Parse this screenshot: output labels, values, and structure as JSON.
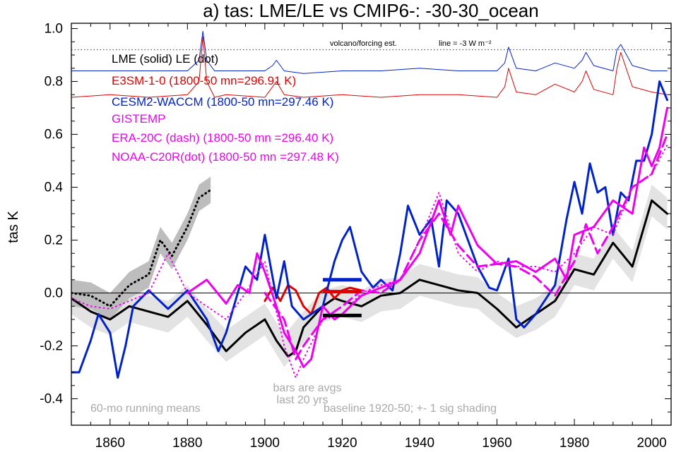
{
  "title": "a) tas: LME/LE vs CMIP6-: -30-30_ocean",
  "ylabel": "tas K",
  "legend": [
    {
      "label": "LME (solid)   LE (dot)",
      "color": "#000000"
    },
    {
      "label": "E3SM-1-0 (1800-50 mn=296.91 K)",
      "color": "#e00000"
    },
    {
      "label": "CESM2-WACCM (1800-50 mn=297.46 K)",
      "color": "#0022cc"
    },
    {
      "label": "GISTEMP",
      "color": "#ee00ee"
    },
    {
      "label": "ERA-20C (dash) (1800-50 mn =296.40 K)",
      "color": "#ee00ee"
    },
    {
      "label": "NOAA-C20R(dot) (1800-50 mn =297.48 K)",
      "color": "#ee00ee"
    }
  ],
  "annotations": {
    "forcing_label": "volcano/forcing est.",
    "forcing_scale": "line = -3 W m⁻²",
    "running_means": "60-mo running means",
    "bars_line1": "bars are avgs",
    "bars_line2": "last 20 yrs",
    "baseline": "baseline 1920-50; +- 1 sig shading"
  },
  "chart_data": {
    "type": "line",
    "xlim": [
      1850,
      2005
    ],
    "ylim": [
      -0.5,
      1.02
    ],
    "xticks": [
      1860,
      1880,
      1900,
      1920,
      1940,
      1960,
      1980,
      2000
    ],
    "yticks": [
      -0.4,
      -0.2,
      0.0,
      0.2,
      0.4,
      0.6,
      0.8,
      1.0
    ],
    "ytick_labels": [
      "-0.4",
      "-0.2",
      "0.0",
      "0.2",
      "0.4",
      "0.6",
      "0.8",
      "1.0"
    ],
    "zero_line": true,
    "forcing_reference_y": 0.92,
    "series": [
      {
        "name": "LME",
        "color": "#000000",
        "width": 3,
        "style": "solid",
        "x": [
          1850,
          1855,
          1860,
          1865,
          1870,
          1875,
          1880,
          1885,
          1890,
          1895,
          1900,
          1903,
          1906,
          1908,
          1910,
          1915,
          1918,
          1920,
          1925,
          1930,
          1935,
          1940,
          1945,
          1950,
          1955,
          1960,
          1965,
          1970,
          1975,
          1980,
          1985,
          1990,
          1995,
          2000,
          2004
        ],
        "y": [
          -0.02,
          -0.07,
          -0.1,
          -0.05,
          -0.07,
          -0.09,
          -0.03,
          -0.12,
          -0.22,
          -0.15,
          -0.1,
          -0.18,
          -0.24,
          -0.22,
          -0.13,
          -0.05,
          -0.02,
          -0.03,
          -0.05,
          -0.01,
          0.0,
          0.05,
          0.03,
          0.01,
          0.0,
          -0.06,
          -0.13,
          -0.08,
          -0.03,
          0.09,
          0.07,
          0.19,
          0.1,
          0.35,
          0.3
        ]
      },
      {
        "name": "E3SM-1-0",
        "color": "#e00000",
        "width": 3,
        "style": "solid",
        "x": [
          1900,
          1902,
          1904,
          1906,
          1908,
          1910,
          1912,
          1914,
          1916,
          1918,
          1920,
          1922,
          1925
        ],
        "y": [
          -0.03,
          0.02,
          -0.03,
          0.03,
          0.01,
          -0.05,
          -0.08,
          0.0,
          0.02,
          -0.02,
          0.01,
          0.02,
          0.01
        ]
      },
      {
        "name": "E3SM-1-0 forcing",
        "color": "#e00000",
        "width": 1,
        "style": "solid",
        "x": [
          1850,
          1860,
          1870,
          1880,
          1883,
          1884,
          1885,
          1887,
          1890,
          1900,
          1902,
          1903,
          1905,
          1910,
          1920,
          1930,
          1940,
          1950,
          1960,
          1962,
          1963,
          1965,
          1970,
          1975,
          1980,
          1982,
          1983,
          1985,
          1990,
          1991,
          1992,
          1995,
          2000,
          2004
        ],
        "y": [
          0.74,
          0.75,
          0.74,
          0.75,
          0.8,
          0.97,
          0.8,
          0.74,
          0.75,
          0.74,
          0.78,
          0.8,
          0.75,
          0.74,
          0.75,
          0.74,
          0.75,
          0.75,
          0.74,
          0.78,
          0.85,
          0.76,
          0.75,
          0.79,
          0.76,
          0.8,
          0.84,
          0.77,
          0.75,
          0.85,
          0.91,
          0.78,
          0.76,
          0.75
        ]
      },
      {
        "name": "CESM2-WACCM",
        "color": "#0022cc",
        "width": 3,
        "style": "solid",
        "x": [
          1850,
          1852,
          1855,
          1857,
          1860,
          1862,
          1864,
          1866,
          1870,
          1875,
          1880,
          1885,
          1888,
          1890,
          1895,
          1898,
          1900,
          1903,
          1905,
          1907,
          1910,
          1915,
          1918,
          1920,
          1922,
          1925,
          1928,
          1930,
          1933,
          1935,
          1937,
          1940,
          1943,
          1945,
          1947,
          1950,
          1955,
          1958,
          1960,
          1963,
          1965,
          1967,
          1970,
          1975,
          1978,
          1980,
          1982,
          1984,
          1986,
          1988,
          1990,
          1992,
          1994,
          1996,
          1998,
          2000,
          2002,
          2004
        ],
        "y": [
          -0.3,
          -0.3,
          -0.18,
          -0.08,
          -0.15,
          -0.32,
          -0.2,
          -0.05,
          0.01,
          -0.06,
          0.01,
          -0.1,
          -0.22,
          -0.15,
          0.1,
          0.05,
          0.22,
          -0.02,
          0.12,
          -0.05,
          -0.1,
          -0.05,
          0.12,
          0.2,
          0.25,
          0.08,
          0.02,
          0.05,
          0.01,
          0.15,
          0.33,
          0.22,
          0.28,
          0.1,
          0.35,
          0.3,
          0.1,
          0.02,
          0.01,
          0.13,
          -0.1,
          -0.13,
          -0.08,
          0.03,
          0.28,
          0.42,
          0.3,
          0.49,
          0.38,
          0.4,
          0.22,
          0.38,
          0.35,
          0.5,
          0.5,
          0.6,
          0.8,
          0.73
        ]
      },
      {
        "name": "GISTEMP",
        "color": "#ee00ee",
        "width": 3,
        "style": "solid",
        "x": [
          1880,
          1885,
          1890,
          1893,
          1896,
          1898,
          1900,
          1903,
          1905,
          1908,
          1910,
          1912,
          1915,
          1918,
          1920,
          1925,
          1930,
          1935,
          1940,
          1945,
          1948,
          1950,
          1955,
          1960,
          1965,
          1970,
          1975,
          1978,
          1980,
          1985,
          1990,
          1995,
          1998,
          2000,
          2002,
          2004
        ],
        "y": [
          0.0,
          0.05,
          -0.04,
          0.03,
          0.0,
          0.15,
          0.08,
          -0.05,
          -0.15,
          -0.22,
          -0.28,
          -0.25,
          -0.05,
          -0.1,
          -0.08,
          -0.01,
          0.02,
          0.05,
          0.15,
          0.35,
          0.22,
          0.33,
          0.18,
          0.11,
          0.12,
          0.08,
          0.13,
          0.05,
          0.22,
          0.25,
          0.35,
          0.3,
          0.55,
          0.48,
          0.55,
          0.7
        ]
      },
      {
        "name": "ERA-20C",
        "color": "#ee00ee",
        "width": 3,
        "style": "dash",
        "x": [
          1900,
          1905,
          1908,
          1910,
          1915,
          1920,
          1925,
          1930,
          1935,
          1940,
          1945,
          1950,
          1955,
          1960,
          1965,
          1970,
          1975,
          1980,
          1983,
          1986,
          1990,
          1995,
          2000,
          2004
        ],
        "y": [
          0.0,
          -0.1,
          -0.25,
          -0.2,
          -0.1,
          -0.05,
          0.01,
          0.0,
          0.05,
          0.2,
          0.3,
          0.18,
          0.1,
          0.11,
          0.1,
          0.06,
          -0.01,
          0.12,
          0.26,
          0.15,
          0.25,
          0.4,
          0.45,
          0.6
        ]
      },
      {
        "name": "NOAA-C20R",
        "color": "#ee00ee",
        "width": 2,
        "style": "dot",
        "x": [
          1850,
          1855,
          1860,
          1865,
          1870,
          1875,
          1880,
          1885,
          1890,
          1895,
          1900,
          1905,
          1908,
          1910,
          1915,
          1920,
          1925,
          1930,
          1935,
          1940,
          1945,
          1950,
          1955,
          1960,
          1965,
          1970,
          1975,
          1980,
          1985,
          1990,
          1995,
          2000,
          2004
        ],
        "y": [
          -0.02,
          -0.05,
          -0.06,
          -0.03,
          0.0,
          0.15,
          0.0,
          -0.05,
          -0.1,
          0.0,
          0.12,
          -0.2,
          -0.32,
          -0.25,
          -0.1,
          -0.08,
          0.0,
          0.03,
          0.05,
          0.2,
          0.38,
          0.15,
          0.08,
          0.12,
          0.1,
          0.1,
          0.08,
          0.15,
          0.25,
          0.22,
          0.4,
          0.45,
          0.56
        ]
      },
      {
        "name": "LE",
        "color": "#000000",
        "width": 3,
        "style": "dot",
        "x": [
          1850,
          1855,
          1860,
          1865,
          1870,
          1873,
          1876,
          1880,
          1883,
          1886
        ],
        "y": [
          0.0,
          -0.01,
          -0.05,
          0.03,
          0.07,
          0.2,
          0.14,
          0.25,
          0.36,
          0.39
        ]
      },
      {
        "name": "CESM2-WACCM forcing",
        "color": "#0022cc",
        "width": 1,
        "style": "solid",
        "x": [
          1850,
          1860,
          1870,
          1880,
          1883,
          1884,
          1885,
          1887,
          1890,
          1900,
          1902,
          1903,
          1905,
          1910,
          1920,
          1930,
          1940,
          1950,
          1960,
          1962,
          1963,
          1965,
          1970,
          1975,
          1980,
          1982,
          1983,
          1985,
          1990,
          1991,
          1992,
          1995,
          2000,
          2004
        ],
        "y": [
          0.84,
          0.84,
          0.84,
          0.84,
          0.88,
          0.99,
          0.88,
          0.84,
          0.84,
          0.84,
          0.86,
          0.88,
          0.84,
          0.83,
          0.84,
          0.84,
          0.85,
          0.84,
          0.84,
          0.87,
          0.93,
          0.85,
          0.84,
          0.87,
          0.85,
          0.88,
          0.91,
          0.86,
          0.84,
          0.92,
          0.94,
          0.86,
          0.84,
          0.84
        ]
      }
    ],
    "shading": [
      {
        "name": "LME",
        "color": "#e3e3e3",
        "x": [
          1850,
          1855,
          1860,
          1865,
          1870,
          1875,
          1880,
          1885,
          1890,
          1895,
          1900,
          1905,
          1910,
          1915,
          1920,
          1925,
          1930,
          1935,
          1940,
          1945,
          1950,
          1955,
          1960,
          1965,
          1970,
          1975,
          1980,
          1985,
          1990,
          1995,
          2000,
          2004
        ],
        "y": [
          -0.02,
          -0.07,
          -0.1,
          -0.05,
          -0.07,
          -0.09,
          -0.03,
          -0.12,
          -0.2,
          -0.15,
          -0.1,
          -0.22,
          -0.13,
          -0.05,
          -0.03,
          -0.05,
          -0.01,
          0.0,
          0.05,
          0.03,
          0.01,
          0.0,
          -0.06,
          -0.11,
          -0.08,
          -0.03,
          0.09,
          0.07,
          0.19,
          0.1,
          0.35,
          0.3
        ],
        "sigma": 0.06
      },
      {
        "name": "LE",
        "color": "#bdbdbd",
        "x": [
          1850,
          1855,
          1860,
          1865,
          1870,
          1873,
          1876,
          1880,
          1883,
          1886
        ],
        "y": [
          0.0,
          -0.01,
          -0.05,
          0.03,
          0.07,
          0.2,
          0.14,
          0.25,
          0.36,
          0.39
        ],
        "sigma": 0.05
      }
    ],
    "bars": [
      {
        "color": "#0022cc",
        "x0": 1915,
        "x1": 1925,
        "y": 0.05
      },
      {
        "color": "#e00000",
        "x0": 1915,
        "x1": 1925,
        "y": 0.005
      },
      {
        "color": "#000000",
        "x0": 1915,
        "x1": 1925,
        "y": -0.085
      }
    ]
  }
}
